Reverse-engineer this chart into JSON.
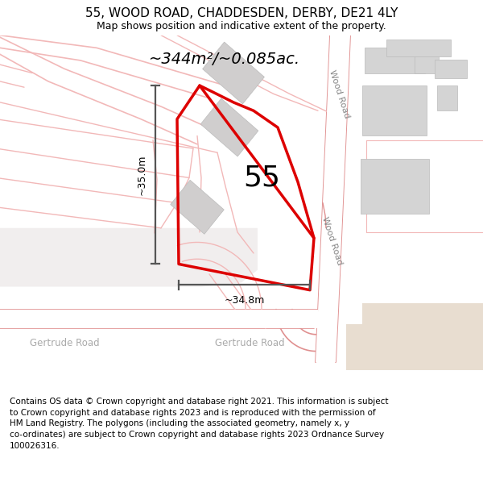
{
  "title": "55, WOOD ROAD, CHADDESDEN, DERBY, DE21 4LY",
  "subtitle": "Map shows position and indicative extent of the property.",
  "footer": "Contains OS data © Crown copyright and database right 2021. This information is subject to Crown copyright and database rights 2023 and is reproduced with the permission of HM Land Registry. The polygons (including the associated geometry, namely x, y co-ordinates) are subject to Crown copyright and database rights 2023 Ordnance Survey 100026316.",
  "bg_color": "#ffffff",
  "area_label": "~344m²/~0.085ac.",
  "plot_number": "55",
  "dim_width": "~34.8m",
  "dim_height": "~35.0m",
  "road_label_top": "Wood Road",
  "road_label_bottom": "Wood Road",
  "road_label_bl": "Gertrude Road",
  "road_label_br": "Gertrude Road",
  "red_color": "#dd0000",
  "dim_color": "#555555",
  "road_pink": "#f2b8b8",
  "road_pink_dark": "#e88888",
  "building_gray": "#d4d4d4",
  "building_tan": "#e8ddd0",
  "title_fontsize": 11,
  "subtitle_fontsize": 9,
  "footer_fontsize": 7.5,
  "map_bg": "#f7f4f4",
  "plot_outline_color": "#e8a0a0",
  "gray_area": "#e8e4e4"
}
